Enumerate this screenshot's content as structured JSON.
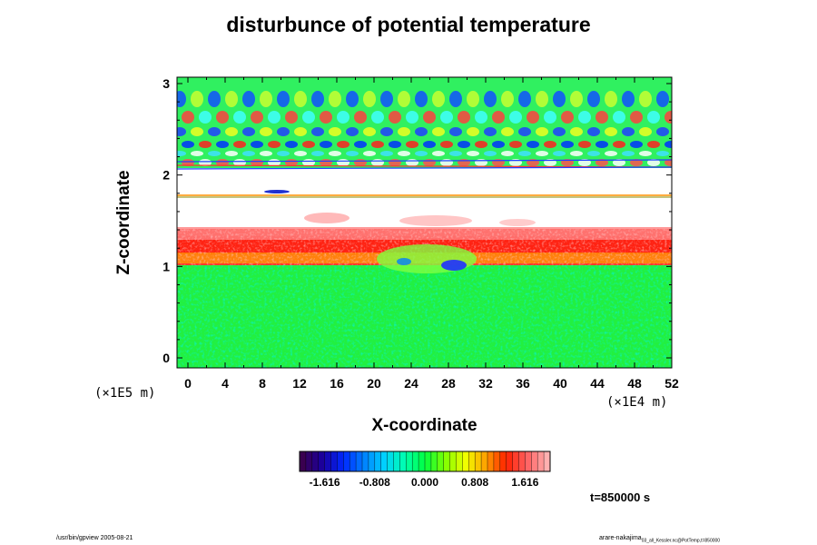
{
  "chart_data": {
    "type": "heatmap",
    "title": "disturbunce of potential temperature",
    "xlabel": "X-coordinate",
    "ylabel": "Z-coordinate",
    "x_unit": "(×1E4 m)",
    "y_unit": "(×1E5 m)",
    "x_ticks": [
      "0",
      "4",
      "8",
      "12",
      "16",
      "20",
      "24",
      "28",
      "32",
      "36",
      "40",
      "44",
      "48",
      "52"
    ],
    "y_ticks": [
      "0",
      "1",
      "2",
      "3"
    ],
    "xlim": [
      0,
      52
    ],
    "ylim": [
      0,
      3
    ],
    "time_label": "t=850000 s",
    "colorbar": {
      "ticks": [
        "-1.616",
        "-0.808",
        "0.000",
        "0.808",
        "1.616"
      ],
      "range": [
        -2.02,
        2.02
      ],
      "colors": [
        "#3a0050",
        "#1a00a0",
        "#0028ff",
        "#0080ff",
        "#00d0ff",
        "#00ffb0",
        "#00ff40",
        "#80ff00",
        "#f0ff00",
        "#ffa000",
        "#ff2000",
        "#ff6060",
        "#ffb0b0"
      ]
    },
    "regions": [
      {
        "z": [
          0.0,
          1.05
        ],
        "value": 0.25,
        "description": "green"
      },
      {
        "z": [
          1.05,
          1.35
        ],
        "value": 1.5,
        "description": "red band"
      },
      {
        "z": [
          1.75,
          2.15
        ],
        "value": 2.1,
        "description": "saturated"
      },
      {
        "z": [
          2.15,
          3.05
        ],
        "value": 0.0,
        "description": "wave pattern"
      }
    ]
  },
  "footer": {
    "left": "/usr/bin/gpview 2005-08-21",
    "right_main": "arare-nakajima",
    "right_sub": "03_all_Kessler.nc@PotTemp,t=850000"
  }
}
